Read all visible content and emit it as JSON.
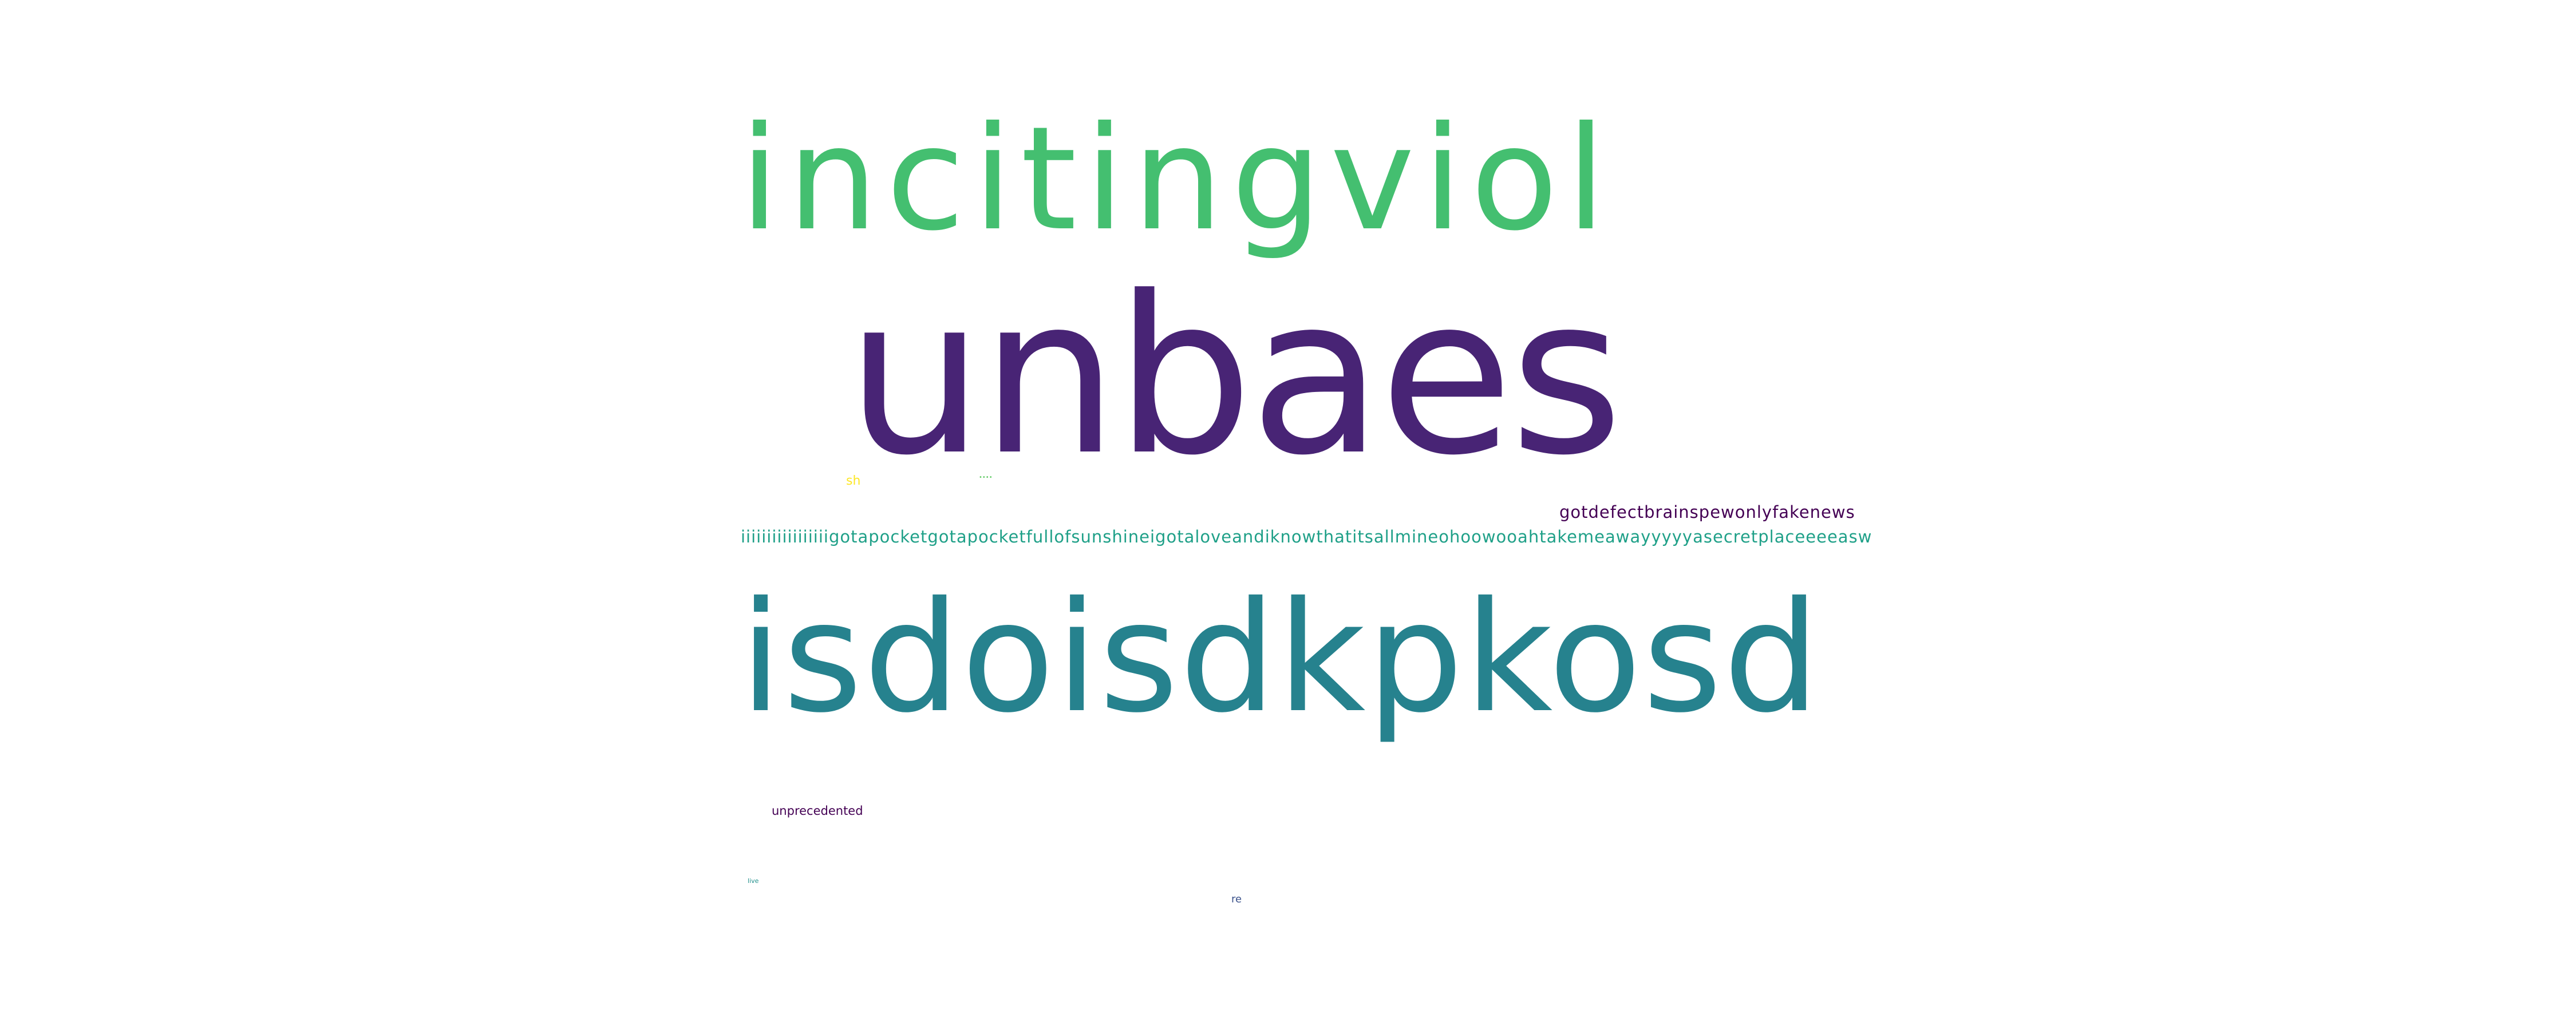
{
  "words": [
    {
      "id": "inciting",
      "text": "incitingviol",
      "color": "#44bf70"
    },
    {
      "id": "unbaes",
      "text": "unbaes",
      "color": "#482475"
    },
    {
      "id": "isdo",
      "text": "isdoisdkpkosd",
      "color": "#26828e"
    },
    {
      "id": "long",
      "text": "iiiiiiiiiiiiiiiiigotapocketgotapocketfullofsunshineigotaloveandiknowthatitsallmineohoowooahtakemeawayyyyyasecretplaceeeeasw",
      "color": "#1fa088"
    },
    {
      "id": "gotdefect",
      "text": "gotdefectbrainspewonlyfakenews",
      "color": "#440154"
    },
    {
      "id": "unprec",
      "text": "unprecedented",
      "color": "#440154"
    },
    {
      "id": "sh",
      "text": "sh",
      "color": "#fde725"
    },
    {
      "id": "tiny1",
      "text": "••••",
      "color": "#5ec962"
    },
    {
      "id": "tiny2",
      "text": "live",
      "color": "#21918c"
    },
    {
      "id": "re",
      "text": "re",
      "color": "#3b528b"
    }
  ]
}
